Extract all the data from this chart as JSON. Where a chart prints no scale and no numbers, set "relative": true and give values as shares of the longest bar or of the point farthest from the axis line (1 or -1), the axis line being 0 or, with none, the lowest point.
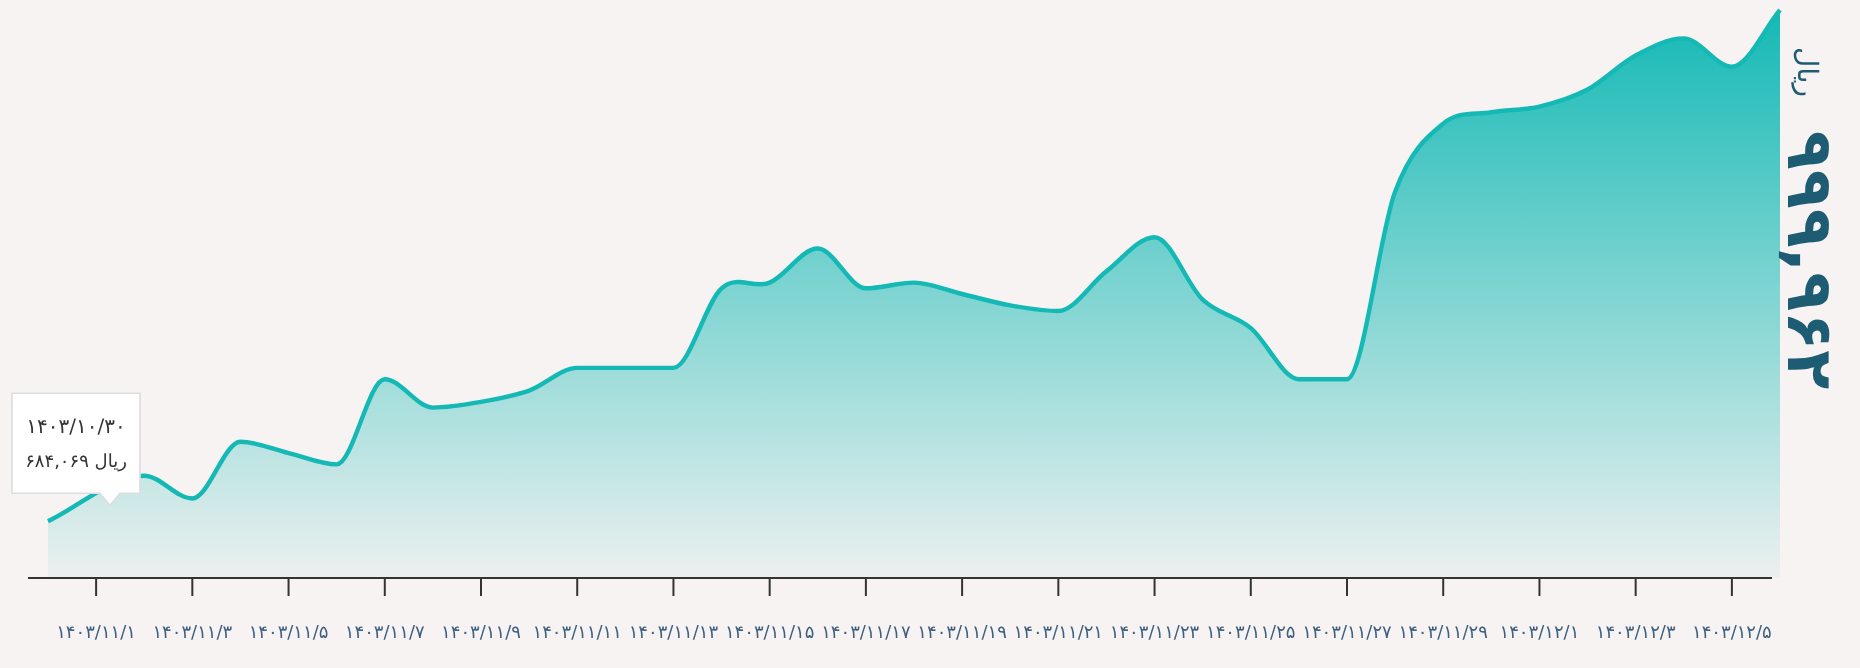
{
  "chart_data": {
    "type": "area",
    "relative": true,
    "title": "۹۹۹,۹۶۲",
    "categories": [
      null,
      "۱۴۰۳/۱۱/۱",
      null,
      "۱۴۰۳/۱۱/۳",
      null,
      "۱۴۰۳/۱۱/۵",
      null,
      "۱۴۰۳/۱۱/۷",
      null,
      "۱۴۰۳/۱۱/۹",
      null,
      "۱۴۰۳/۱۱/۱۱",
      null,
      "۱۴۰۳/۱۱/۱۳",
      null,
      "۱۴۰۳/۱۱/۱۵",
      null,
      "۱۴۰۳/۱۱/۱۷",
      null,
      "۱۴۰۳/۱۱/۱۹",
      null,
      "۱۴۰۳/۱۱/۲۱",
      null,
      "۱۴۰۳/۱۱/۲۳",
      null,
      "۱۴۰۳/۱۱/۲۵",
      null,
      "۱۴۰۳/۱۱/۲۷",
      null,
      "۱۴۰۳/۱۱/۲۹",
      null,
      "۱۴۰۳/۱۲/۱",
      null,
      "۱۴۰۳/۱۲/۳",
      null,
      "۱۴۰۳/۱۲/۵",
      null
    ],
    "series": [
      {
        "color": "#14b9b5",
        "values": [
          0.1,
          null,
          0.18,
          0.14,
          0.24,
          0.22,
          0.2,
          0.35,
          0.3,
          0.31,
          0.33,
          0.37,
          0.37,
          0.37,
          0.51,
          0.52,
          0.58,
          0.51,
          0.52,
          0.5,
          0.48,
          0.47,
          0.54,
          0.6,
          0.49,
          0.44,
          0.35,
          0.35,
          0.68,
          0.8,
          0.82,
          0.83,
          0.86,
          0.92,
          0.95,
          0.9,
          1
        ]
      }
    ],
    "annotations": [
      "ریال",
      "۱۴۰۳/۱۰/۳۰",
      "ریال ۶۸۴,۰۶۹"
    ]
  }
}
